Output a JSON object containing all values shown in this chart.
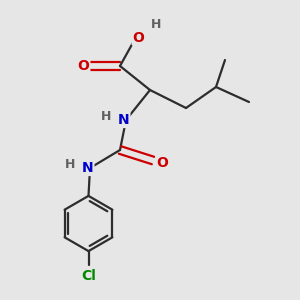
{
  "background_color": "#e6e6e6",
  "bond_color": "#2d2d2d",
  "atom_colors": {
    "O": "#cc0000",
    "N": "#0000cc",
    "Cl": "#008800",
    "H": "#606060",
    "C": "#2d2d2d"
  },
  "figsize": [
    3.0,
    3.0
  ],
  "dpi": 100
}
